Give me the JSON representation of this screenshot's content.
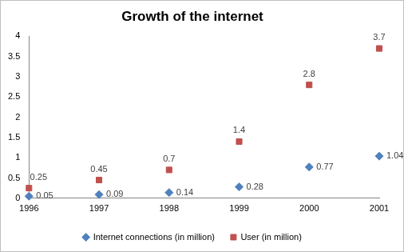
{
  "chart_data": {
    "type": "scatter",
    "title": "Growth of the internet",
    "x": [
      1996,
      1997,
      1998,
      1999,
      2000,
      2001
    ],
    "series": [
      {
        "name": "Internet connections (in million)",
        "color": "#4f81bd",
        "marker": "diamond",
        "values": [
          0.05,
          0.09,
          0.14,
          0.28,
          0.77,
          1.04
        ]
      },
      {
        "name": "User (in million)",
        "color": "#c0504d",
        "marker": "square",
        "values": [
          0.25,
          0.45,
          0.7,
          1.4,
          2.8,
          3.7
        ]
      }
    ],
    "xlim": [
      1996,
      2001
    ],
    "xticks": [
      1996,
      1997,
      1998,
      1999,
      2000,
      2001
    ],
    "ylim": [
      0,
      4
    ],
    "yticks": [
      0,
      0.5,
      1,
      1.5,
      2,
      2.5,
      3,
      3.5,
      4
    ],
    "grid": false,
    "legend": "bottom",
    "data_labels": true
  }
}
